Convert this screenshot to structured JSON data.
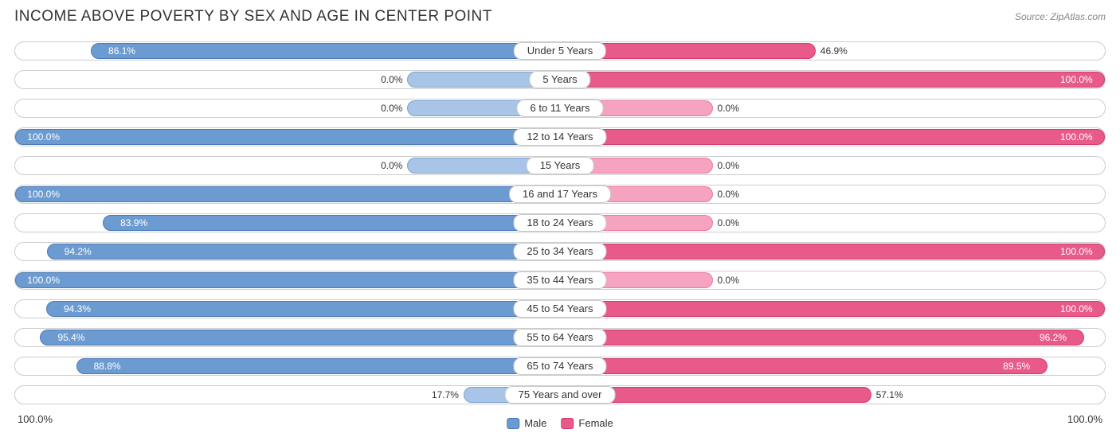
{
  "title": "INCOME ABOVE POVERTY BY SEX AND AGE IN CENTER POINT",
  "source": "Source: ZipAtlas.com",
  "chart": {
    "type": "bidirectional-bar",
    "male": {
      "fill": "#6c9bd1",
      "stroke": "#4a7ab5",
      "fill_light": "#a8c4e6",
      "stroke_light": "#7aa3d4"
    },
    "female": {
      "fill": "#e85a8a",
      "stroke": "#d03a6e",
      "fill_light": "#f5a3c0",
      "stroke_light": "#eb7ba3"
    },
    "track_border": "#cccccc",
    "background": "#ffffff",
    "label_fontsize": 13,
    "value_fontsize": 12,
    "axis_min": "100.0%",
    "axis_max": "100.0%",
    "rows": [
      {
        "label": "Under 5 Years",
        "male": 86.1,
        "female": 46.9,
        "male_light": false,
        "female_light": false
      },
      {
        "label": "5 Years",
        "male": 0.0,
        "female": 100.0,
        "male_light": true,
        "female_light": false
      },
      {
        "label": "6 to 11 Years",
        "male": 0.0,
        "female": 0.0,
        "male_light": true,
        "female_light": true
      },
      {
        "label": "12 to 14 Years",
        "male": 100.0,
        "female": 100.0,
        "male_light": false,
        "female_light": false
      },
      {
        "label": "15 Years",
        "male": 0.0,
        "female": 0.0,
        "male_light": true,
        "female_light": true
      },
      {
        "label": "16 and 17 Years",
        "male": 100.0,
        "female": 0.0,
        "male_light": false,
        "female_light": true
      },
      {
        "label": "18 to 24 Years",
        "male": 83.9,
        "female": 0.0,
        "male_light": false,
        "female_light": true
      },
      {
        "label": "25 to 34 Years",
        "male": 94.2,
        "female": 100.0,
        "male_light": false,
        "female_light": false
      },
      {
        "label": "35 to 44 Years",
        "male": 100.0,
        "female": 0.0,
        "male_light": false,
        "female_light": true
      },
      {
        "label": "45 to 54 Years",
        "male": 94.3,
        "female": 100.0,
        "male_light": false,
        "female_light": false
      },
      {
        "label": "55 to 64 Years",
        "male": 95.4,
        "female": 96.2,
        "male_light": false,
        "female_light": false
      },
      {
        "label": "65 to 74 Years",
        "male": 88.8,
        "female": 89.5,
        "male_light": false,
        "female_light": false
      },
      {
        "label": "75 Years and over",
        "male": 17.7,
        "female": 57.1,
        "male_light": true,
        "female_light": false
      }
    ]
  },
  "legend": {
    "male": "Male",
    "female": "Female"
  }
}
